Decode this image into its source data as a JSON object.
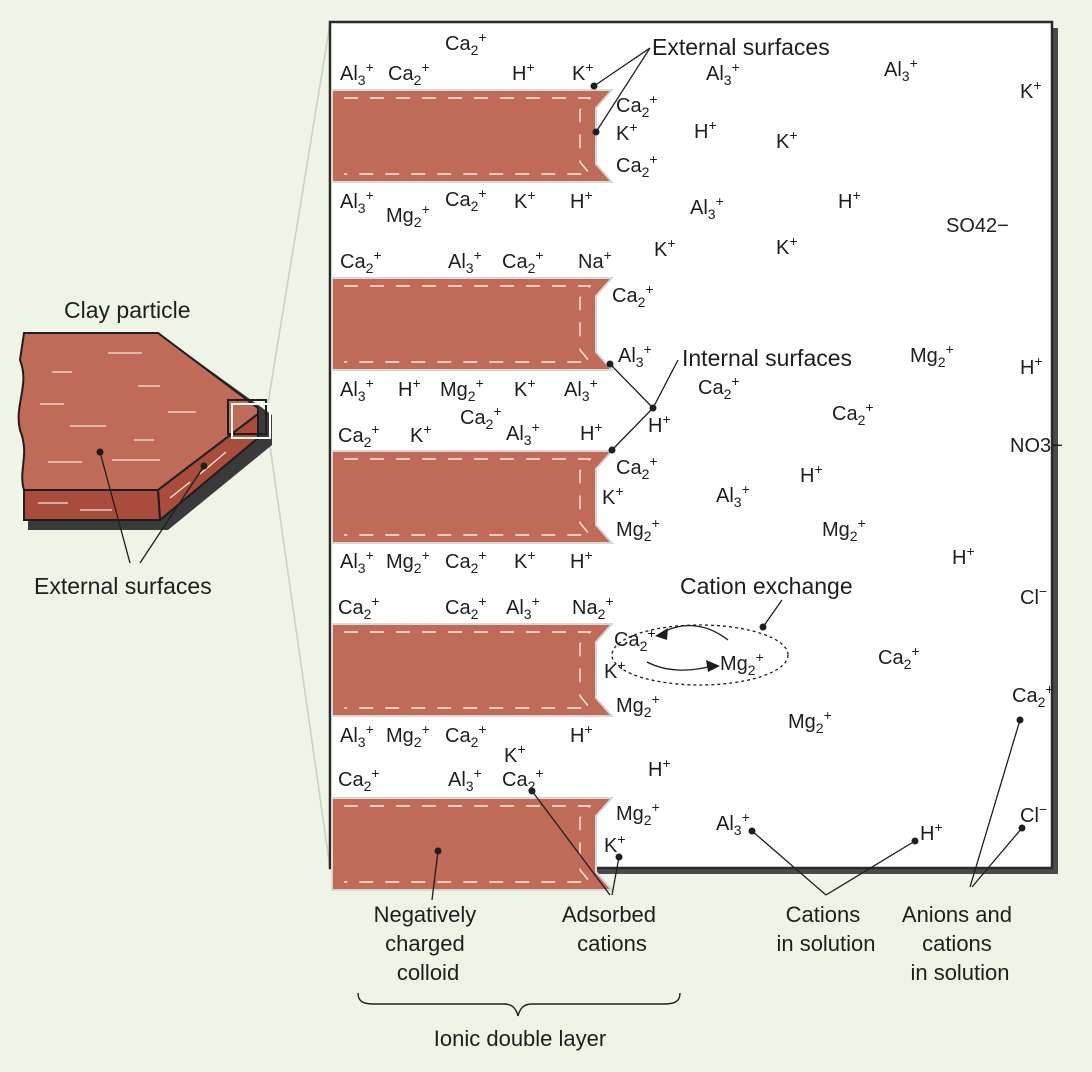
{
  "labels": {
    "clay_particle": "Clay particle",
    "external_surfaces_left": "External surfaces",
    "external_surfaces_top": "External surfaces",
    "internal_surfaces": "Internal surfaces",
    "cation_exchange": "Cation exchange",
    "negatively_charged_colloid": [
      "Negatively",
      "charged",
      "colloid"
    ],
    "adsorbed_cations": [
      "Adsorbed",
      "cations"
    ],
    "cations_in_solution": [
      "Cations",
      "in solution"
    ],
    "anions_and_cations_in_solution": [
      "Anions and",
      "cations",
      "in solution"
    ],
    "ionic_double_layer": "Ionic double layer"
  },
  "colors": {
    "background": "#eef5e6",
    "colloid": "#c06a58",
    "colloid_dark": "#8e3b2c",
    "panel": "#ffffff",
    "border": "#2a2a2a"
  },
  "ions": [
    {
      "text": "Ca2+"
    },
    {
      "text": "Al3+"
    },
    {
      "text": "Ca2+"
    },
    {
      "text": "H+"
    },
    {
      "text": "K+"
    },
    {
      "text": "Al3+"
    },
    {
      "text": "Al3+"
    },
    {
      "text": "K+"
    },
    {
      "text": "Ca2+"
    },
    {
      "text": "K+"
    },
    {
      "text": "Ca2+"
    },
    {
      "text": "H+"
    },
    {
      "text": "K+"
    },
    {
      "text": "Al3+"
    },
    {
      "text": "Mg2+"
    },
    {
      "text": "Ca2+"
    },
    {
      "text": "K+"
    },
    {
      "text": "H+"
    },
    {
      "text": "Al3+"
    },
    {
      "text": "H+"
    },
    {
      "text": "SO42−"
    },
    {
      "text": "Ca2+"
    },
    {
      "text": "Al3+"
    },
    {
      "text": "Ca2+"
    },
    {
      "text": "Na+"
    },
    {
      "text": "K+"
    },
    {
      "text": "K+"
    },
    {
      "text": "Ca2+"
    },
    {
      "text": "Al3+"
    },
    {
      "text": "Mg2+"
    },
    {
      "text": "H+"
    },
    {
      "text": "Al3+"
    },
    {
      "text": "H+"
    },
    {
      "text": "Mg2+"
    },
    {
      "text": "K+"
    },
    {
      "text": "Al3+"
    },
    {
      "text": "Ca2+"
    },
    {
      "text": "Ca2+"
    },
    {
      "text": "H+"
    },
    {
      "text": "Ca2+"
    },
    {
      "text": "Ca2+"
    },
    {
      "text": "K+"
    },
    {
      "text": "Al3+"
    },
    {
      "text": "H+"
    },
    {
      "text": "NO3−"
    },
    {
      "text": "Ca2+"
    },
    {
      "text": "H+"
    },
    {
      "text": "K+"
    },
    {
      "text": "Al3+"
    },
    {
      "text": "Mg2+"
    },
    {
      "text": "Mg2+"
    },
    {
      "text": "Al3+"
    },
    {
      "text": "Mg2+"
    },
    {
      "text": "Ca2+"
    },
    {
      "text": "K+"
    },
    {
      "text": "H+"
    },
    {
      "text": "H+"
    },
    {
      "text": "Ca2+"
    },
    {
      "text": "Ca2+"
    },
    {
      "text": "Al3+"
    },
    {
      "text": "Na2+"
    },
    {
      "text": "Cl−"
    },
    {
      "text": "Ca2+"
    },
    {
      "text": "K+"
    },
    {
      "text": "Mg2+"
    },
    {
      "text": "Ca2+"
    },
    {
      "text": "Mg2+"
    },
    {
      "text": "Ca2+"
    },
    {
      "text": "Al3+"
    },
    {
      "text": "Mg2+"
    },
    {
      "text": "Ca2+"
    },
    {
      "text": "H+"
    },
    {
      "text": "Mg2+"
    },
    {
      "text": "K+"
    },
    {
      "text": "Ca2+"
    },
    {
      "text": "Al3+"
    },
    {
      "text": "Ca2+"
    },
    {
      "text": "H+"
    },
    {
      "text": "Mg2+"
    },
    {
      "text": "K+"
    },
    {
      "text": "Al3+"
    },
    {
      "text": "H+"
    },
    {
      "text": "Cl−"
    }
  ]
}
